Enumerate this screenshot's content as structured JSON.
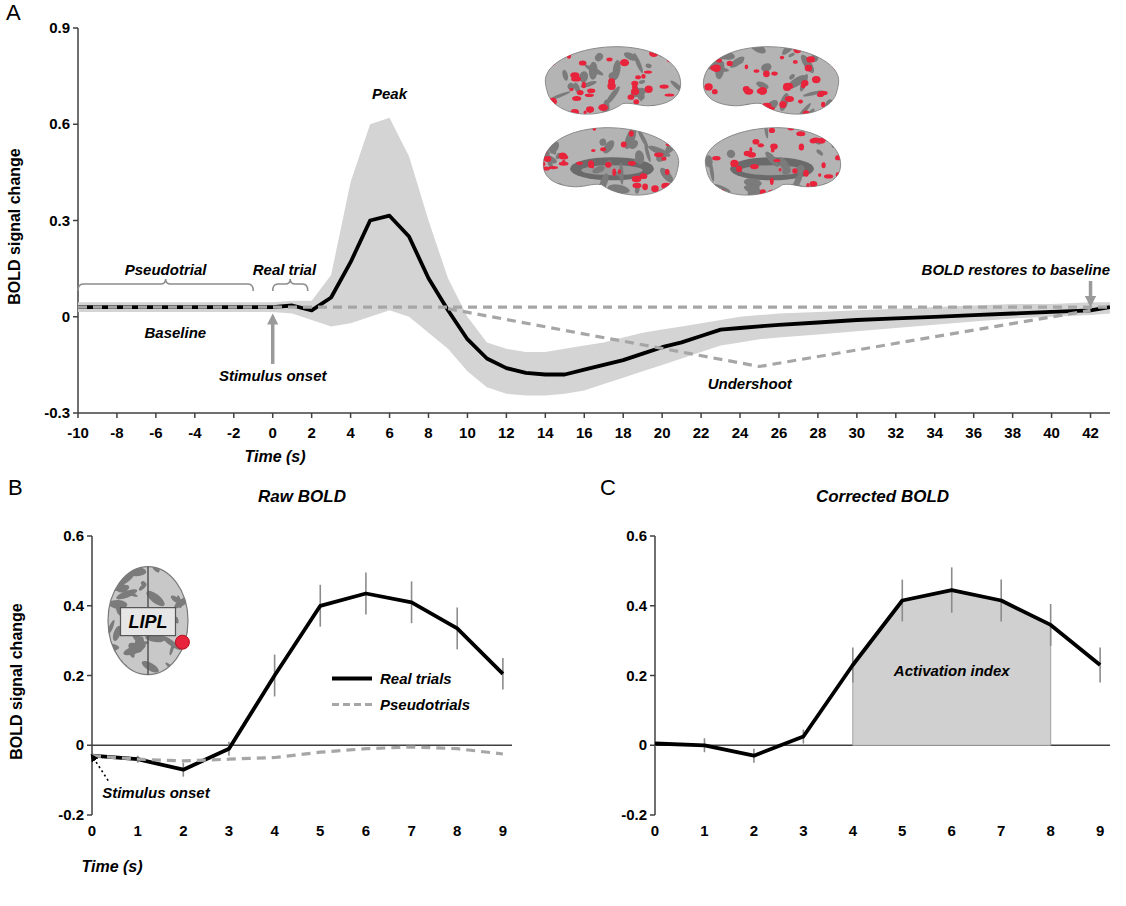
{
  "chart_data": [
    {
      "panel": "A",
      "type": "line",
      "x_label": "Time (s)",
      "y_label": "BOLD signal change",
      "xlim": [
        -10,
        43
      ],
      "xticks": [
        -10,
        -8,
        -6,
        -4,
        -2,
        0,
        2,
        4,
        6,
        8,
        10,
        12,
        14,
        16,
        18,
        20,
        22,
        24,
        26,
        28,
        30,
        32,
        34,
        36,
        38,
        40,
        42
      ],
      "ylim": [
        -0.3,
        0.9
      ],
      "yticks": [
        -0.3,
        0,
        0.3,
        0.6,
        0.9
      ],
      "x": [
        -10,
        -8,
        -6,
        -4,
        -2,
        0,
        1,
        2,
        3,
        4,
        5,
        6,
        7,
        8,
        9,
        10,
        11,
        12,
        13,
        14,
        15,
        16,
        17,
        18,
        19,
        20,
        21,
        22,
        23,
        24,
        25,
        26,
        28,
        30,
        32,
        34,
        36,
        38,
        40,
        42,
        43
      ],
      "series": [
        {
          "color": "#000000",
          "line_style": "solid",
          "values": [
            0.03,
            0.03,
            0.03,
            0.03,
            0.03,
            0.03,
            0.035,
            0.02,
            0.06,
            0.17,
            0.3,
            0.315,
            0.25,
            0.12,
            0.02,
            -0.07,
            -0.13,
            -0.16,
            -0.175,
            -0.18,
            -0.18,
            -0.165,
            -0.15,
            -0.135,
            -0.115,
            -0.095,
            -0.08,
            -0.06,
            -0.04,
            -0.035,
            -0.03,
            -0.025,
            -0.018,
            -0.01,
            -0.005,
            0,
            0.005,
            0.01,
            0.015,
            0.02,
            0.03
          ],
          "upper": [
            0.045,
            0.045,
            0.045,
            0.045,
            0.045,
            0.045,
            0.05,
            0.05,
            0.13,
            0.42,
            0.6,
            0.62,
            0.5,
            0.3,
            0.12,
            0.0,
            -0.08,
            -0.1,
            -0.11,
            -0.11,
            -0.1,
            -0.09,
            -0.08,
            -0.065,
            -0.05,
            -0.04,
            -0.03,
            -0.02,
            -0.01,
            0.0,
            0.005,
            0.01,
            0.015,
            0.02,
            0.025,
            0.03,
            0.035,
            0.04,
            0.04,
            0.045,
            0.045
          ],
          "lower": [
            0.015,
            0.015,
            0.015,
            0.015,
            0.015,
            0.015,
            0.01,
            -0.01,
            -0.03,
            -0.02,
            0.0,
            0.02,
            0.0,
            -0.05,
            -0.1,
            -0.17,
            -0.22,
            -0.24,
            -0.245,
            -0.245,
            -0.24,
            -0.23,
            -0.21,
            -0.19,
            -0.17,
            -0.15,
            -0.13,
            -0.11,
            -0.09,
            -0.08,
            -0.07,
            -0.065,
            -0.055,
            -0.045,
            -0.035,
            -0.025,
            -0.015,
            -0.005,
            0.0,
            0.005,
            0.01
          ]
        },
        {
          "color": "#a6a6a6",
          "line_style": "dashed",
          "x": [
            -10,
            43
          ],
          "values": [
            0.03,
            0.03
          ]
        },
        {
          "color": "#a6a6a6",
          "line_style": "dashed",
          "x": [
            9,
            25,
            42
          ],
          "values": [
            0.025,
            -0.155,
            0.02
          ]
        }
      ],
      "annotations": [
        {
          "text": "Peak",
          "x": 6,
          "y": 0.68
        },
        {
          "text": "Pseudotrial",
          "x": -5.5,
          "y": 0.13,
          "span": [
            -10,
            -1
          ]
        },
        {
          "text": "Real trial",
          "x": 0.6,
          "y": 0.13,
          "span": [
            0,
            1.8
          ]
        },
        {
          "text": "Baseline",
          "x": -5,
          "y": -0.065
        },
        {
          "text": "Stimulus onset",
          "x": 0,
          "y": -0.2,
          "arrow_to": [
            0,
            0.0
          ]
        },
        {
          "text": "Undershoot",
          "x": 24.5,
          "y": -0.225
        },
        {
          "text": "BOLD restores to baseline",
          "x": 39,
          "y": 0.13,
          "arrow_to": [
            42,
            0.04
          ]
        }
      ]
    },
    {
      "panel": "B",
      "type": "line",
      "title": "Raw BOLD",
      "x_label": "Time (s)",
      "y_label": "BOLD signal change",
      "xlim": [
        0,
        9.2
      ],
      "xticks": [
        0,
        1,
        2,
        3,
        4,
        5,
        6,
        7,
        8,
        9
      ],
      "ylim": [
        -0.2,
        0.6
      ],
      "yticks": [
        -0.2,
        0,
        0.2,
        0.4,
        0.6
      ],
      "x": [
        0,
        1,
        2,
        3,
        4,
        5,
        6,
        7,
        8,
        9
      ],
      "series": [
        {
          "name": "Real trials",
          "color": "#000000",
          "line_style": "solid",
          "values": [
            -0.03,
            -0.04,
            -0.07,
            -0.01,
            0.2,
            0.4,
            0.435,
            0.41,
            0.335,
            0.205
          ],
          "errors": [
            0.005,
            0.01,
            0.02,
            0.02,
            0.06,
            0.06,
            0.06,
            0.06,
            0.06,
            0.045
          ]
        },
        {
          "name": "Pseudotrials",
          "color": "#a6a6a6",
          "line_style": "dashed",
          "values": [
            -0.03,
            -0.04,
            -0.045,
            -0.04,
            -0.035,
            -0.02,
            -0.01,
            -0.005,
            -0.01,
            -0.025
          ]
        }
      ],
      "legend": "right",
      "inset_label": "LIPL",
      "annotations": [
        {
          "text": "Stimulus onset",
          "x": 1.4,
          "y": -0.15,
          "arrow_to": [
            0,
            -0.03
          ]
        }
      ]
    },
    {
      "panel": "C",
      "type": "line",
      "title": "Corrected BOLD",
      "xlim": [
        0,
        9.2
      ],
      "xticks": [
        0,
        1,
        2,
        3,
        4,
        5,
        6,
        7,
        8,
        9
      ],
      "ylim": [
        -0.2,
        0.6
      ],
      "yticks": [
        -0.2,
        0,
        0.2,
        0.4,
        0.6
      ],
      "x": [
        0,
        1,
        2,
        3,
        4,
        5,
        6,
        7,
        8,
        9
      ],
      "series": [
        {
          "color": "#000000",
          "line_style": "solid",
          "values": [
            0.005,
            0,
            -0.03,
            0.025,
            0.23,
            0.415,
            0.445,
            0.415,
            0.345,
            0.23
          ],
          "errors": [
            0.01,
            0.02,
            0.02,
            0.02,
            0.05,
            0.06,
            0.065,
            0.06,
            0.06,
            0.05
          ]
        }
      ],
      "shaded_range": [
        4,
        8
      ],
      "annotations": [
        {
          "text": "Activation index",
          "x": 6,
          "y": 0.2
        }
      ]
    }
  ]
}
